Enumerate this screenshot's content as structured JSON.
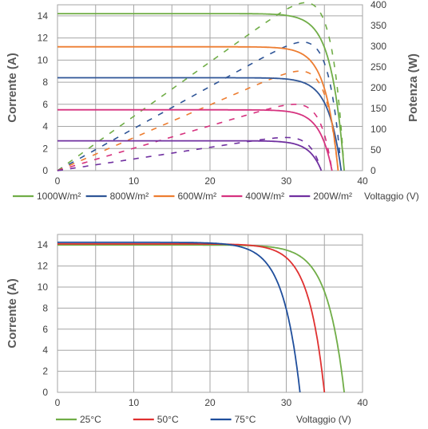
{
  "chart_data": [
    {
      "type": "line",
      "xlabel": "Voltaggio (V)",
      "ylabel": "Corrente (A)",
      "y2label": "Potenza (W)",
      "xlim": [
        0,
        40
      ],
      "ylim": [
        0,
        15
      ],
      "y2lim": [
        0,
        400
      ],
      "x_ticks": [
        "0",
        "10",
        "20",
        "30",
        "40"
      ],
      "y_ticks": [
        "0",
        "2",
        "4",
        "6",
        "8",
        "10",
        "12",
        "14"
      ],
      "y2_ticks": [
        "0",
        "50",
        "100",
        "150",
        "200",
        "250",
        "300",
        "350",
        "400"
      ],
      "grid": true,
      "legend_position": "bottom",
      "series": [
        {
          "name": "1000W/m²",
          "color": "#70ad47",
          "isc": 14.2,
          "voc": 37.6,
          "vmp": 31.6,
          "knee": 0.045,
          "power_peak": 405
        },
        {
          "name": "800W/m²",
          "color": "#2f5597",
          "isc": 8.4,
          "voc": 37.2,
          "vmp": 31.2,
          "knee": 0.045,
          "power_peak": 310
        },
        {
          "name": "600W/m²",
          "color": "#ed7d31",
          "isc": 11.2,
          "voc": 36.8,
          "vmp": 31.0,
          "knee": 0.045,
          "power_peak": 240
        },
        {
          "name": "400W/m²",
          "color": "#d6327f",
          "isc": 5.5,
          "voc": 36.0,
          "vmp": 30.6,
          "knee": 0.045,
          "power_peak": 160
        },
        {
          "name": "200W/m²",
          "color": "#7030a0",
          "isc": 2.7,
          "voc": 34.6,
          "vmp": 29.6,
          "knee": 0.045,
          "power_peak": 80
        }
      ]
    },
    {
      "type": "line",
      "xlabel": "Voltaggio (V)",
      "ylabel": "Corrente (A)",
      "xlim": [
        0,
        40
      ],
      "ylim": [
        0,
        15
      ],
      "x_ticks": [
        "0",
        "10",
        "20",
        "30",
        "40"
      ],
      "y_ticks": [
        "0",
        "2",
        "4",
        "6",
        "8",
        "10",
        "12",
        "14"
      ],
      "grid": true,
      "legend_position": "bottom",
      "series": [
        {
          "name": "25°C",
          "color": "#70ad47",
          "isc": 14.0,
          "voc": 37.6,
          "knee": 0.06
        },
        {
          "name": "50°C",
          "color": "#e03030",
          "isc": 14.1,
          "voc": 35.0,
          "knee": 0.06
        },
        {
          "name": "75°C",
          "color": "#1f4e9c",
          "isc": 14.25,
          "voc": 31.8,
          "knee": 0.07
        }
      ]
    }
  ]
}
